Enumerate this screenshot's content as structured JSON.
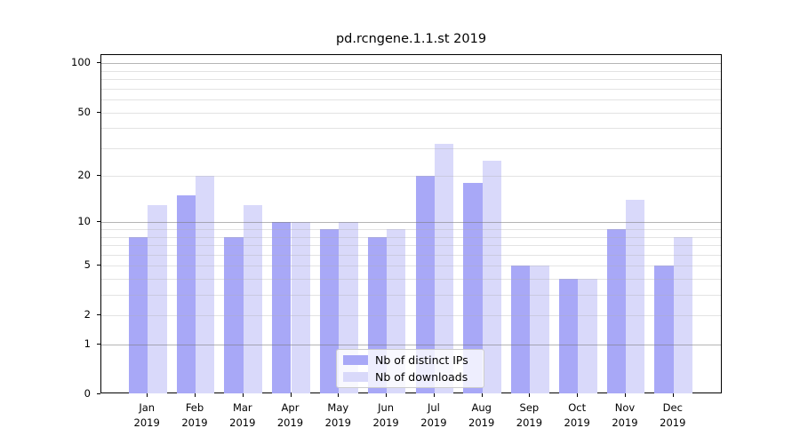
{
  "chart_data": {
    "type": "bar",
    "title": "pd.rcngene.1.1.st 2019",
    "categories": [
      "Jan",
      "Feb",
      "Mar",
      "Apr",
      "May",
      "Jun",
      "Jul",
      "Aug",
      "Sep",
      "Oct",
      "Nov",
      "Dec"
    ],
    "year": "2019",
    "series": [
      {
        "name": "Nb of distinct IPs",
        "color": "#a8a8f7",
        "values": [
          8,
          15,
          8,
          10,
          9,
          8,
          20,
          18,
          5,
          4,
          9,
          5
        ]
      },
      {
        "name": "Nb of downloads",
        "color": "#d9d9fa",
        "values": [
          13,
          20,
          13,
          10,
          10,
          9,
          32,
          25,
          5,
          4,
          14,
          8
        ]
      }
    ],
    "xlabel": "",
    "ylabel": "",
    "yscale": "log1p",
    "ylim": [
      0,
      114
    ],
    "ytick_labels": [
      "0",
      "1",
      "2",
      "5",
      "10",
      "20",
      "50",
      "100"
    ],
    "ytick_values": [
      0,
      1,
      2,
      5,
      10,
      20,
      50,
      100
    ],
    "grid_major_values": [
      1,
      10,
      100
    ],
    "grid_minor_values": [
      2,
      3,
      4,
      5,
      6,
      7,
      8,
      9,
      20,
      30,
      40,
      50,
      60,
      70,
      80,
      90
    ],
    "grid": "on",
    "legend_position": "lower center"
  }
}
